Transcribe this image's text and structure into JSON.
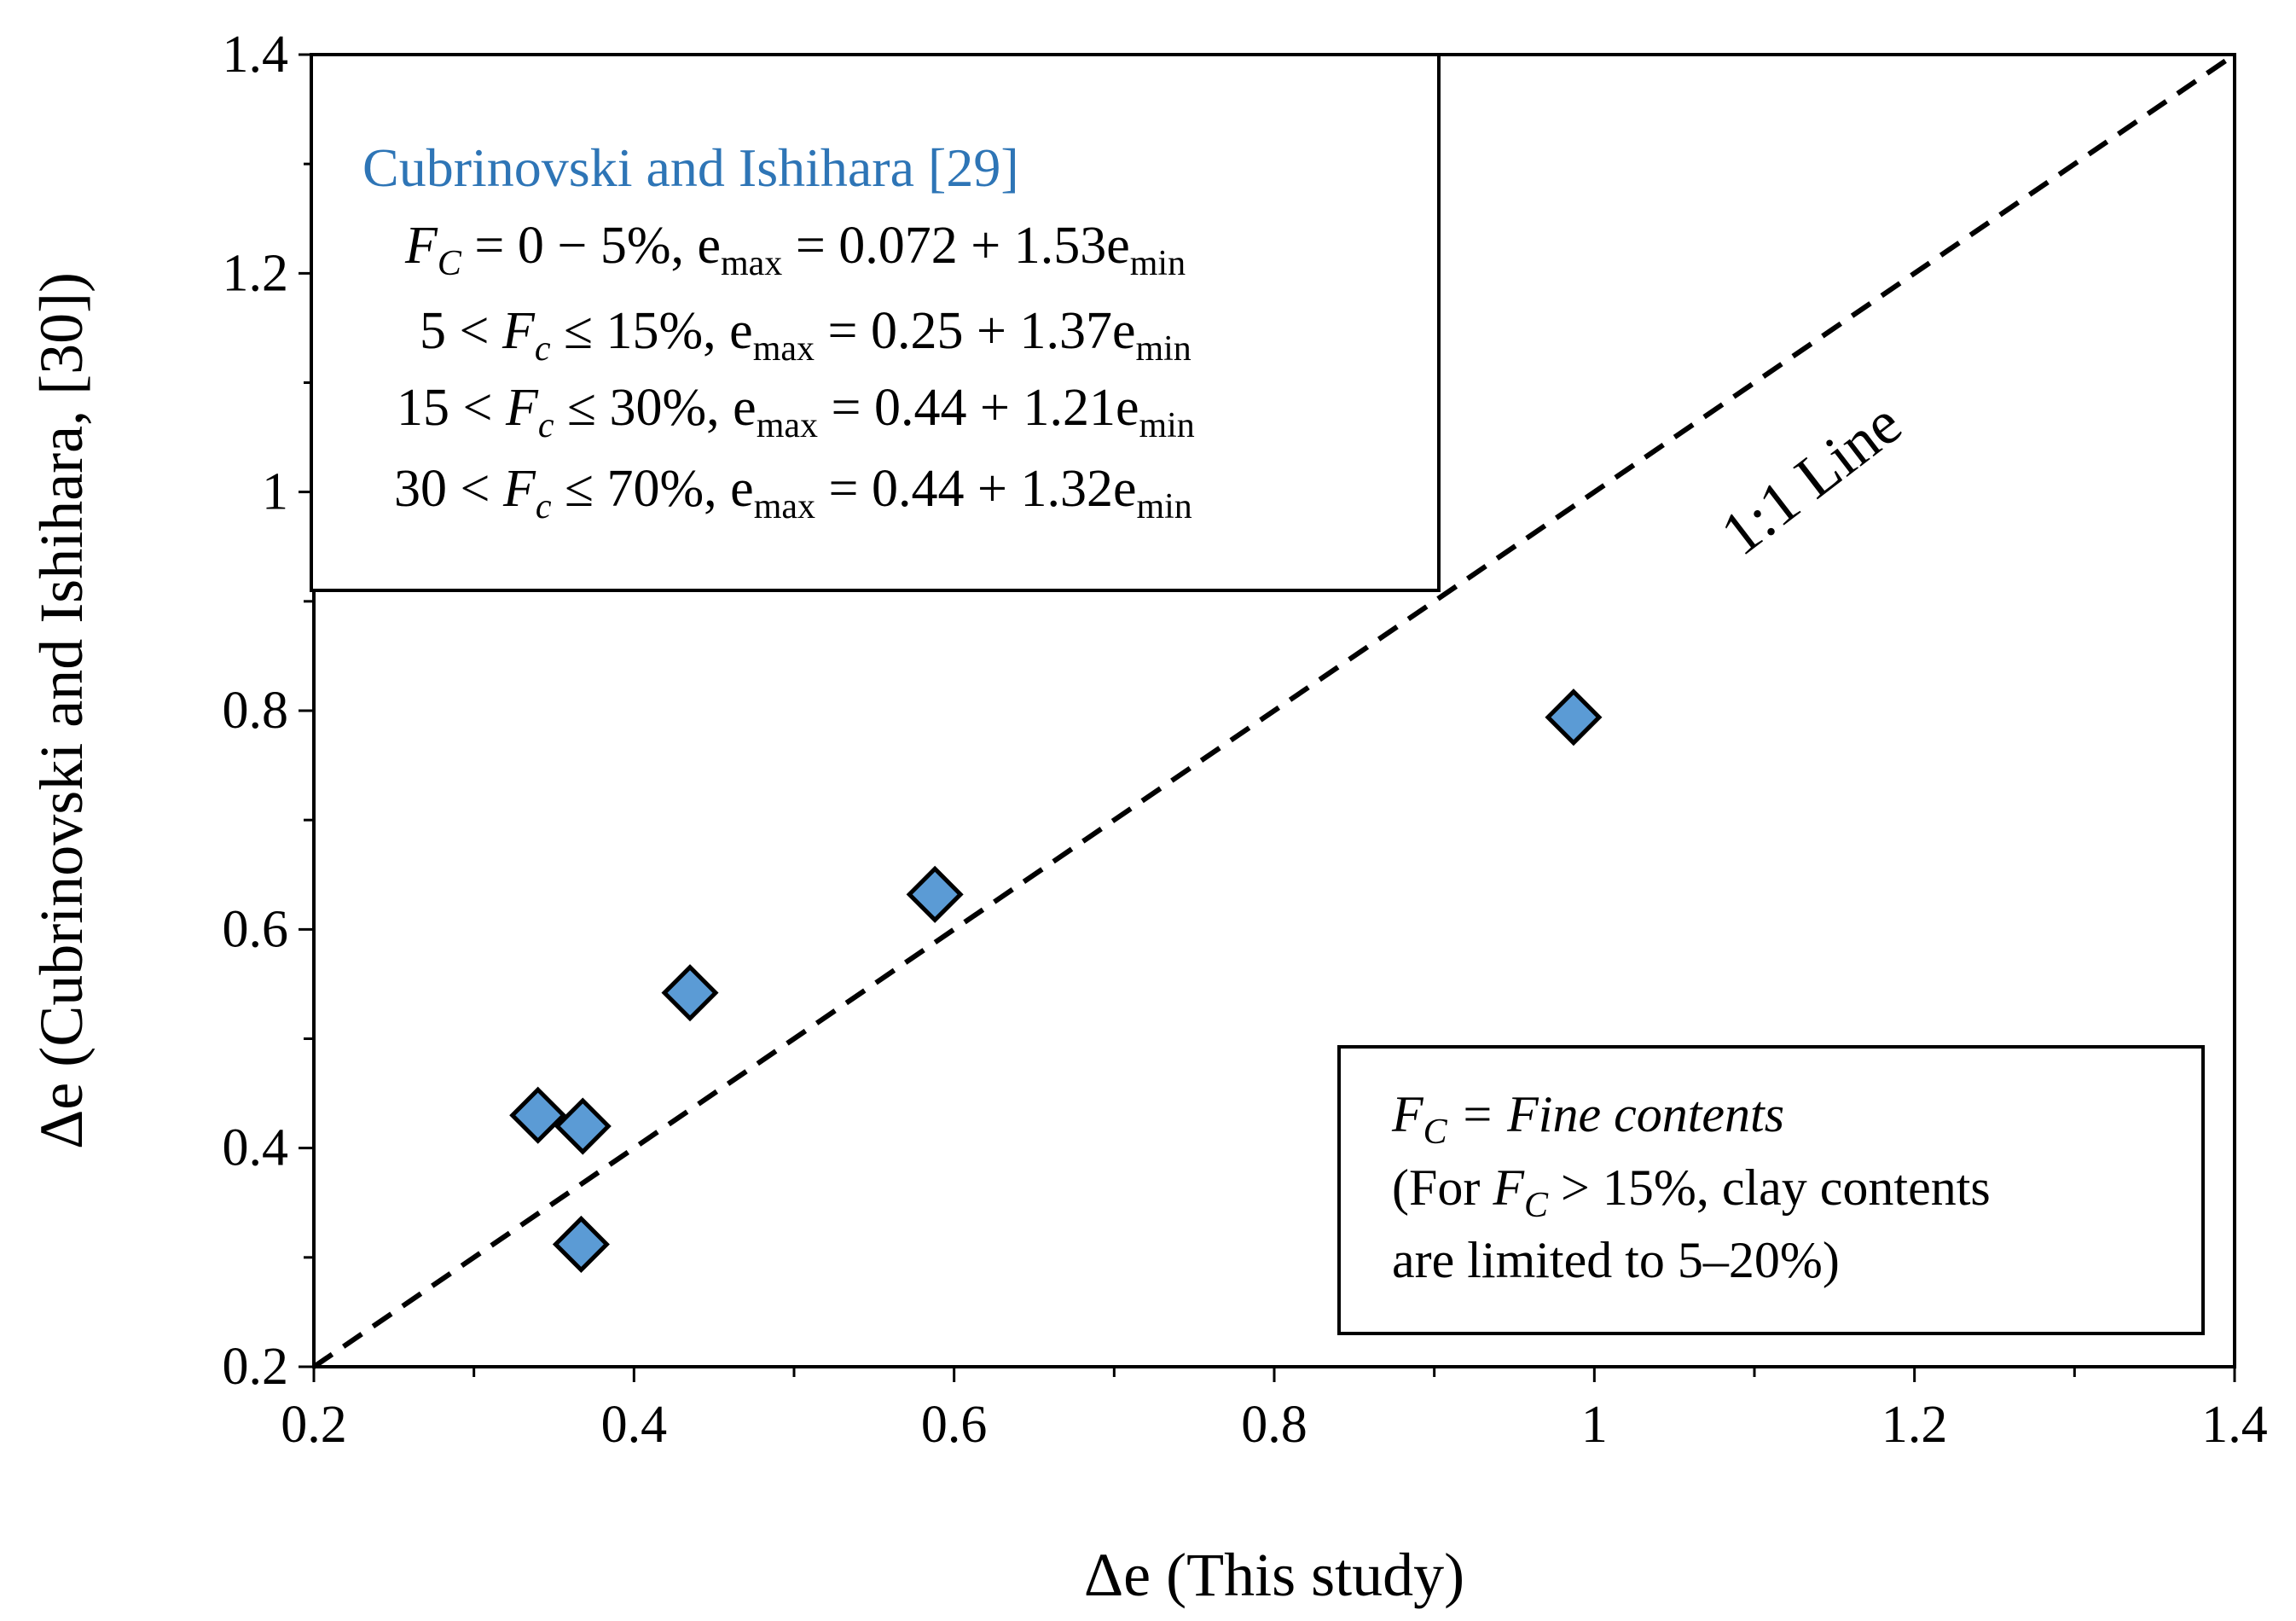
{
  "chart_data": {
    "type": "scatter",
    "xlabel": "Δe (This study)",
    "ylabel": "Δe (Cubrinovski and Ishihara, [30])",
    "xlim": [
      0.2,
      1.4
    ],
    "ylim": [
      0.2,
      1.4
    ],
    "xticks": [
      "0.2",
      "0.4",
      "0.6",
      "0.8",
      "1",
      "1.2",
      "1.4"
    ],
    "yticks": [
      "0.2",
      "0.4",
      "0.6",
      "0.8",
      "1",
      "1.2",
      "1.4"
    ],
    "grid": false,
    "marker_color": "#5b9bd5",
    "title_color": "#2e75b6",
    "series": [
      {
        "name": "Cubrinovski and Ishihara [29]",
        "points": [
          {
            "x": 0.34,
            "y": 0.43
          },
          {
            "x": 0.368,
            "y": 0.42
          },
          {
            "x": 0.367,
            "y": 0.312
          },
          {
            "x": 0.435,
            "y": 0.542
          },
          {
            "x": 0.588,
            "y": 0.632
          },
          {
            "x": 0.987,
            "y": 0.794
          }
        ]
      }
    ],
    "reference_line": {
      "label": "1:1 Line",
      "from": [
        0.2,
        0.2
      ],
      "to": [
        1.4,
        1.4
      ]
    },
    "legend_box": {
      "title": "Cubrinovski and Ishihara [29]",
      "equations": [
        {
          "prefix": "",
          "fc_sub": "C",
          "range": " = 0 − 5%, e",
          "max_sub": "max",
          "rhs": " = 0.072 + 1.53e",
          "min_sub": "min"
        },
        {
          "prefix": "5 < ",
          "fc_sub": "c",
          "range": " ≤ 15%, e",
          "max_sub": "max",
          "rhs": " = 0.25 + 1.37e",
          "min_sub": "min"
        },
        {
          "prefix": "15 < ",
          "fc_sub": "c",
          "range": " ≤ 30%, e",
          "max_sub": "max",
          "rhs": " = 0.44 + 1.21e",
          "min_sub": "min"
        },
        {
          "prefix": "30 < ",
          "fc_sub": "c",
          "range": " ≤ 70%, e",
          "max_sub": "max",
          "rhs": " = 0.44 + 1.32e",
          "min_sub": "min"
        }
      ]
    },
    "note_box": {
      "line1_rest": " = Fine contents",
      "line2_start": "(For ",
      "line2_end": " > 15%, clay contents",
      "line3": "are limited to 5–20%)",
      "symbol_F": "F",
      "symbol_sub": "C"
    }
  }
}
